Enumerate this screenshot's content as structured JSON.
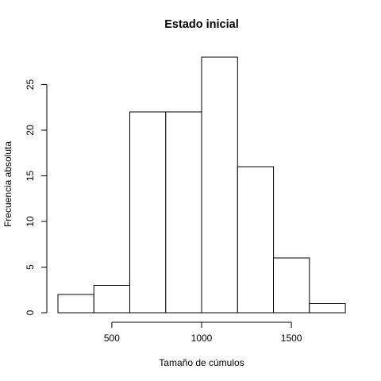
{
  "chart_data": {
    "type": "bar",
    "title": "Estado inicial",
    "xlabel": "Tamaño de cúmulos",
    "ylabel": "Frecuencia absoluta",
    "bins": [
      {
        "start": 200,
        "end": 400,
        "count": 2
      },
      {
        "start": 400,
        "end": 600,
        "count": 3
      },
      {
        "start": 600,
        "end": 800,
        "count": 22
      },
      {
        "start": 800,
        "end": 1000,
        "count": 22
      },
      {
        "start": 1000,
        "end": 1200,
        "count": 28
      },
      {
        "start": 1200,
        "end": 1400,
        "count": 16
      },
      {
        "start": 1400,
        "end": 1600,
        "count": 6
      },
      {
        "start": 1600,
        "end": 1800,
        "count": 1
      }
    ],
    "xlim": [
      200,
      1800
    ],
    "ylim": [
      0,
      28
    ],
    "xticks": [
      500,
      1000,
      1500
    ],
    "yticks": [
      0,
      5,
      10,
      15,
      20,
      25
    ],
    "grid": false,
    "bar_fill": "#ffffff",
    "bar_stroke": "#000000"
  }
}
